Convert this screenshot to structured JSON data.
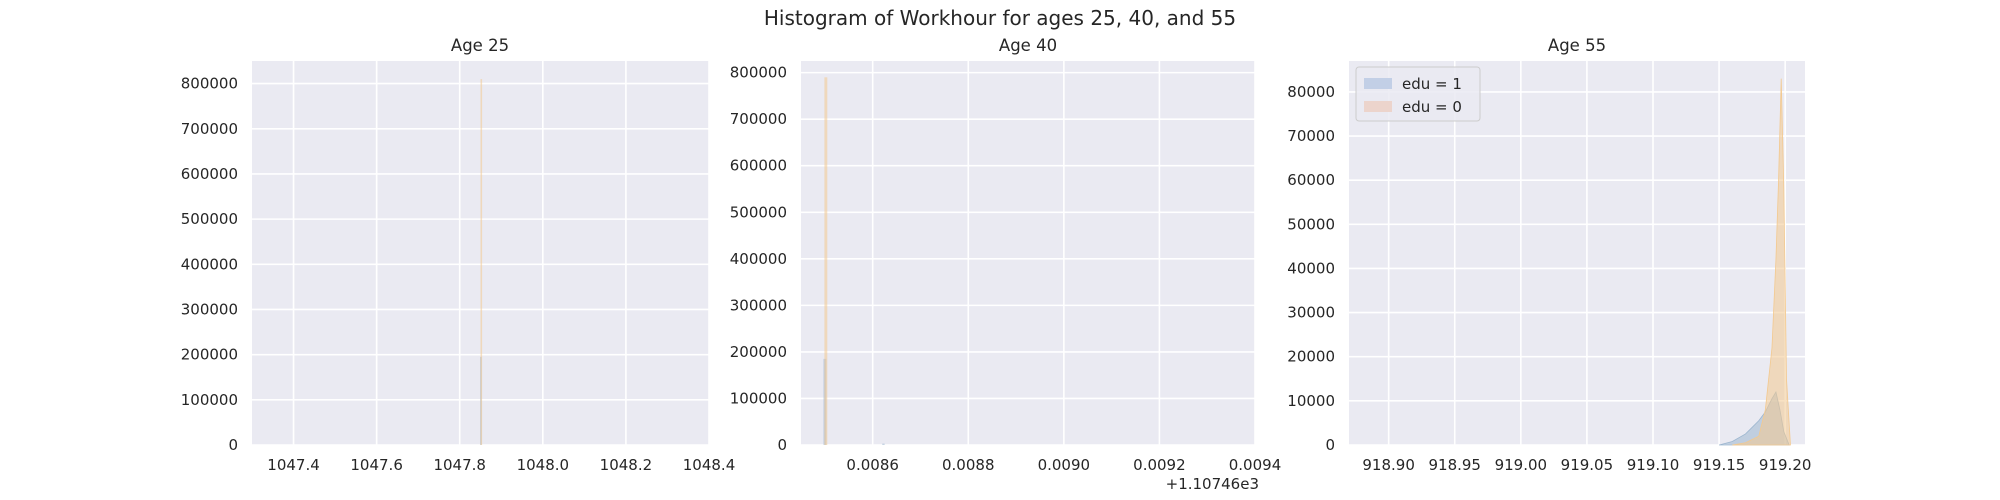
{
  "chart_data": {
    "title": "Histogram of Workhour for ages 25, 40, and 55",
    "legend": {
      "placement": "top-left",
      "panel": 2,
      "entries": [
        {
          "label": "edu = 1",
          "color": "#c2cfe6"
        },
        {
          "label": "edu = 0",
          "color": "#ecd4cc"
        }
      ]
    },
    "series_colors": {
      "edu = 1": "#9cb6cf",
      "edu = 0": "#f3c98f"
    },
    "panels": [
      {
        "type": "histogram",
        "title": "Age 25",
        "xlim": [
          1047.3,
          1048.4
        ],
        "ylim": [
          0,
          850000
        ],
        "grid": true,
        "xticks": [
          1047.4,
          1047.6,
          1047.8,
          1048.0,
          1048.2,
          1048.4
        ],
        "xtick_labels": [
          "1047.4",
          "1047.6",
          "1047.8",
          "1048.0",
          "1048.2",
          "1048.4"
        ],
        "yticks": [
          0,
          100000,
          200000,
          300000,
          400000,
          500000,
          600000,
          700000,
          800000
        ],
        "ytick_labels": [
          "0",
          "100000",
          "200000",
          "300000",
          "400000",
          "500000",
          "600000",
          "700000",
          "800000"
        ],
        "offset_label": "",
        "series": [
          {
            "name": "edu = 1",
            "bins": [
              {
                "x0": 1047.849,
                "x1": 1047.852,
                "count": 195000
              }
            ]
          },
          {
            "name": "edu = 0",
            "bins": [
              {
                "x0": 1047.85,
                "x1": 1047.853,
                "count": 810000
              }
            ]
          }
        ]
      },
      {
        "type": "histogram",
        "title": "Age 40",
        "xlim": [
          0.00845,
          0.0094
        ],
        "ylim": [
          0,
          825000
        ],
        "grid": true,
        "xticks": [
          0.0086,
          0.0088,
          0.009,
          0.0092,
          0.0094
        ],
        "xtick_labels": [
          "0.0086",
          "0.0088",
          "0.0090",
          "0.0092",
          "0.0094"
        ],
        "yticks": [
          0,
          100000,
          200000,
          300000,
          400000,
          500000,
          600000,
          700000,
          800000
        ],
        "ytick_labels": [
          "0",
          "100000",
          "200000",
          "300000",
          "400000",
          "500000",
          "600000",
          "700000",
          "800000"
        ],
        "offset_label": "+1.10746e3",
        "series": [
          {
            "name": "edu = 1",
            "bins": [
              {
                "x0": 0.008497,
                "x1": 0.008503,
                "count": 185000
              },
              {
                "x0": 0.00862,
                "x1": 0.008625,
                "count": 3000
              }
            ]
          },
          {
            "name": "edu = 0",
            "bins": [
              {
                "x0": 0.008499,
                "x1": 0.008505,
                "count": 790000
              }
            ]
          }
        ]
      },
      {
        "type": "histogram",
        "title": "Age 55",
        "xlim": [
          918.87,
          919.215
        ],
        "ylim": [
          0,
          87000
        ],
        "grid": true,
        "xticks": [
          918.9,
          918.95,
          919.0,
          919.05,
          919.1,
          919.15,
          919.2
        ],
        "xtick_labels": [
          "918.90",
          "918.95",
          "919.00",
          "919.05",
          "919.10",
          "919.15",
          "919.20"
        ],
        "yticks": [
          0,
          10000,
          20000,
          30000,
          40000,
          50000,
          60000,
          70000,
          80000
        ],
        "ytick_labels": [
          "0",
          "10000",
          "20000",
          "30000",
          "40000",
          "50000",
          "60000",
          "70000",
          "80000"
        ],
        "offset_label": "",
        "series": [
          {
            "name": "edu = 1",
            "distribution": {
              "x": [
                919.15,
                919.16,
                919.17,
                919.18,
                919.185,
                919.19,
                919.193,
                919.196,
                919.199,
                919.203
              ],
              "y": [
                0,
                800,
                2500,
                5500,
                7500,
                10500,
                12000,
                8000,
                3000,
                0
              ]
            }
          },
          {
            "name": "edu = 0",
            "distribution": {
              "x": [
                919.16,
                919.17,
                919.18,
                919.185,
                919.19,
                919.193,
                919.195,
                919.197,
                919.199,
                919.201,
                919.204
              ],
              "y": [
                0,
                500,
                2000,
                8000,
                22000,
                42000,
                60000,
                83000,
                58000,
                15000,
                0
              ]
            }
          }
        ]
      }
    ]
  }
}
